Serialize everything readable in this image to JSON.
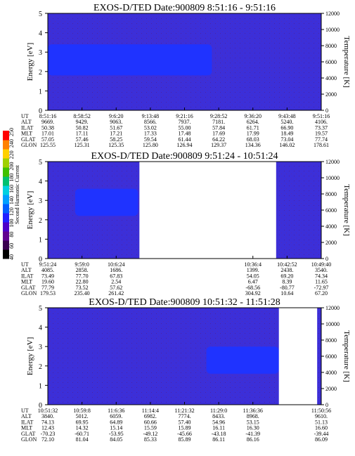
{
  "chart_data": [
    {
      "type": "heatmap",
      "title": "EXOS-D/TED   Date:900809   8:51:16 - 9:51:16",
      "ylabel": "Energy [eV]",
      "y2label": "Temperature [K]",
      "ylim": [
        0,
        5
      ],
      "y2lim": [
        0,
        12000
      ],
      "yticks": [
        "0",
        "1",
        "2",
        "3",
        "4",
        "5"
      ],
      "y2ticks": [
        "0",
        "2000",
        "4000",
        "6000",
        "8000",
        "10000",
        "12000"
      ],
      "data_gaps": [],
      "bright_band": {
        "from": 0.0,
        "to": 0.6,
        "e_low": 1.8,
        "e_high": 3.4
      },
      "orbit_rows": [
        {
          "label": "UT",
          "values": [
            "8:51:16",
            "8:58:52",
            "9:6:20",
            "9:13:48",
            "9:21:16",
            "9:28:52",
            "9:36:20",
            "9:43:48",
            "9:51:16"
          ]
        },
        {
          "label": "ALT",
          "values": [
            "9669.",
            "9429.",
            "9063.",
            "8566.",
            "7937.",
            "7181.",
            "6264.",
            "5240.",
            "4106."
          ]
        },
        {
          "label": "ILAT",
          "values": [
            "50.38",
            "50.82",
            "51.67",
            "53.02",
            "55.00",
            "57.84",
            "61.71",
            "66.90",
            "73.37"
          ]
        },
        {
          "label": "MLT",
          "values": [
            "17.01",
            "17.11",
            "17.21",
            "17.33",
            "17.48",
            "17.69",
            "17.99",
            "18.49",
            "19.57"
          ]
        },
        {
          "label": "GLAT",
          "values": [
            "57.05",
            "57.46",
            "58.25",
            "59.54",
            "61.44",
            "64.22",
            "68.03",
            "73.04",
            "77.74"
          ]
        },
        {
          "label": "GLON",
          "values": [
            "125.55",
            "125.31",
            "125.35",
            "125.80",
            "126.94",
            "129.37",
            "134.36",
            "146.02",
            "178.61"
          ]
        }
      ]
    },
    {
      "type": "heatmap",
      "title": "EXOS-D/TED   Date:900809   9:51:24 - 10:51:24",
      "ylabel": "Energy [eV]",
      "y2label": "Temperature [K]",
      "ylim": [
        0,
        5
      ],
      "y2lim": [
        0,
        12000
      ],
      "yticks": [
        "0",
        "1",
        "2",
        "3",
        "4",
        "5"
      ],
      "y2ticks": [
        "0",
        "2000",
        "4000",
        "6000",
        "8000",
        "10000",
        "12000"
      ],
      "data_gaps": [
        [
          0.335,
          0.835
        ]
      ],
      "bright_band": {
        "from": 0.1,
        "to": 0.33,
        "e_low": 2.2,
        "e_high": 3.6
      },
      "orbit_rows": [
        {
          "label": "UT",
          "values": [
            "9:51:24",
            "9:59:0",
            "10:6:24",
            "",
            "",
            "",
            "10:36:4",
            "10:42:52",
            "10:49:40"
          ]
        },
        {
          "label": "ALT",
          "values": [
            "4085.",
            "2858.",
            "1686.",
            "",
            "",
            "",
            "1399.",
            "2438.",
            "3540."
          ]
        },
        {
          "label": "ILAT",
          "values": [
            "73.49",
            "77.70",
            "67.83",
            "",
            "",
            "",
            "54.05",
            "69.20",
            "74.34"
          ]
        },
        {
          "label": "MLT",
          "values": [
            "19.60",
            "22.80",
            "2.54",
            "",
            "",
            "",
            "6.47",
            "8.39",
            "11.65"
          ]
        },
        {
          "label": "GLAT",
          "values": [
            "77.79",
            "73.52",
            "57.62",
            "",
            "",
            "",
            "-68.56",
            "-80.77",
            "-72.97"
          ]
        },
        {
          "label": "GLON",
          "values": [
            "179.53",
            "235.40",
            "261.42",
            "",
            "",
            "",
            "304.92",
            "10.64",
            "67.20"
          ]
        }
      ]
    },
    {
      "type": "heatmap",
      "title": "EXOS-D/TED   Date:900809   10:51:32 - 11:51:28",
      "ylabel": "Energy [eV]",
      "y2label": "Temperature [K]",
      "ylim": [
        0,
        5
      ],
      "y2lim": [
        0,
        12000
      ],
      "yticks": [
        "0",
        "1",
        "2",
        "3",
        "4",
        "5"
      ],
      "y2ticks": [
        "0",
        "2000",
        "4000",
        "6000",
        "8000",
        "10000",
        "12000"
      ],
      "data_gaps": [
        [
          0.845,
          0.985
        ]
      ],
      "bright_band": {
        "from": 0.58,
        "to": 0.845,
        "e_low": 1.6,
        "e_high": 3.0
      },
      "orbit_rows": [
        {
          "label": "UT",
          "values": [
            "10:51:32",
            "10:59:8",
            "11:6:36",
            "11:14:4",
            "11:21:32",
            "11:29:0",
            "11:36:36",
            "",
            "11:50:56"
          ]
        },
        {
          "label": "ALT",
          "values": [
            "3840.",
            "5012.",
            "6059.",
            "6982.",
            "7774.",
            "8433.",
            "8968.",
            "",
            "9610."
          ]
        },
        {
          "label": "ILAT",
          "values": [
            "74.13",
            "69.95",
            "64.89",
            "60.66",
            "57.40",
            "54.96",
            "53.15",
            "",
            "51.13"
          ]
        },
        {
          "label": "MLT",
          "values": [
            "12.43",
            "14.32",
            "15.14",
            "15.59",
            "15.89",
            "16.11",
            "16.30",
            "",
            "16.60"
          ]
        },
        {
          "label": "GLAT",
          "values": [
            "-70.23",
            "-60.71",
            "-53.95",
            "-49.12",
            "-45.66",
            "-43.18",
            "-41.39",
            "",
            "-39.44"
          ]
        },
        {
          "label": "GLON",
          "values": [
            "72.10",
            "81.04",
            "84.05",
            "85.33",
            "85.89",
            "86.11",
            "86.16",
            "",
            "86.09"
          ]
        }
      ]
    }
  ],
  "colorbar": {
    "label": "Second Harmonic Current",
    "ticks": [
      "40",
      "60",
      "80",
      "100",
      "120",
      "140",
      "160",
      "180",
      "200",
      "220",
      "240",
      "250"
    ],
    "colors": [
      "#000000",
      "#3a0050",
      "#600090",
      "#4b00c8",
      "#2020ff",
      "#0060ff",
      "#00a0ff",
      "#00d0e0",
      "#00c070",
      "#40c000",
      "#a0d000",
      "#ffd000",
      "#ff8000",
      "#ff0000"
    ]
  }
}
